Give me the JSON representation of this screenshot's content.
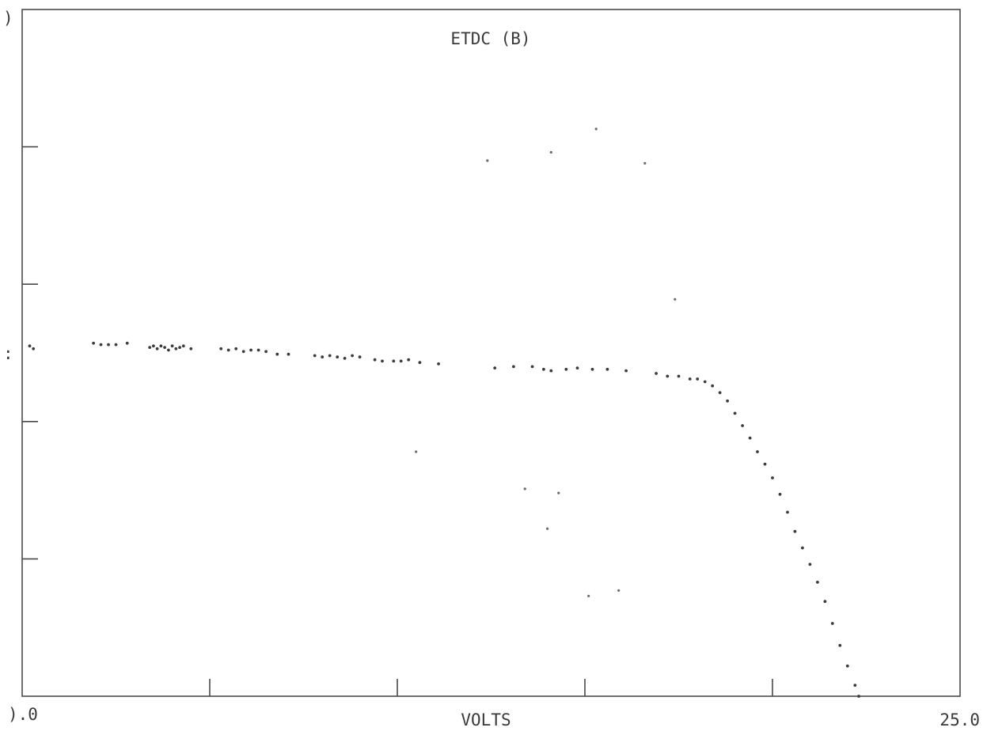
{
  "chart_data": {
    "type": "scatter",
    "title": "ETDC (B)",
    "xlabel": "VOLTS",
    "ylabel": "",
    "x_tick_labels": {
      "min": ").0",
      "max": "25.0"
    },
    "y_tick_labels": {
      "top": ")",
      "mid": ":"
    },
    "xlim": [
      0,
      25
    ],
    "ylim": [
      0,
      5
    ],
    "x_ticks": [
      0,
      5,
      10,
      15,
      20,
      25
    ],
    "y_ticks": [
      0,
      1,
      2,
      3,
      4,
      5
    ],
    "grid": false,
    "legend": "none",
    "marker_color": "#3c3c3c",
    "series": [
      {
        "points": [
          [
            0.2,
            2.55
          ],
          [
            0.3,
            2.53
          ],
          [
            1.9,
            2.57
          ],
          [
            2.1,
            2.56
          ],
          [
            2.3,
            2.56
          ],
          [
            2.5,
            2.56
          ],
          [
            2.8,
            2.57
          ],
          [
            3.4,
            2.54
          ],
          [
            3.5,
            2.55
          ],
          [
            3.6,
            2.53
          ],
          [
            3.7,
            2.55
          ],
          [
            3.8,
            2.54
          ],
          [
            3.9,
            2.52
          ],
          [
            4.0,
            2.55
          ],
          [
            4.1,
            2.53
          ],
          [
            4.2,
            2.54
          ],
          [
            4.3,
            2.55
          ],
          [
            4.5,
            2.53
          ],
          [
            5.3,
            2.53
          ],
          [
            5.5,
            2.52
          ],
          [
            5.7,
            2.53
          ],
          [
            5.9,
            2.51
          ],
          [
            6.1,
            2.52
          ],
          [
            6.3,
            2.52
          ],
          [
            6.5,
            2.51
          ],
          [
            6.8,
            2.49
          ],
          [
            7.1,
            2.49
          ],
          [
            7.8,
            2.48
          ],
          [
            8.0,
            2.47
          ],
          [
            8.2,
            2.48
          ],
          [
            8.4,
            2.47
          ],
          [
            8.6,
            2.46
          ],
          [
            8.8,
            2.48
          ],
          [
            9.0,
            2.47
          ],
          [
            9.4,
            2.45
          ],
          [
            9.6,
            2.44
          ],
          [
            9.9,
            2.44
          ],
          [
            10.1,
            2.44
          ],
          [
            10.3,
            2.45
          ],
          [
            10.6,
            2.43
          ],
          [
            11.1,
            2.42
          ],
          [
            12.6,
            2.39
          ],
          [
            13.1,
            2.4
          ],
          [
            13.6,
            2.4
          ],
          [
            13.9,
            2.38
          ],
          [
            14.1,
            2.37
          ],
          [
            14.5,
            2.38
          ],
          [
            14.8,
            2.39
          ],
          [
            15.2,
            2.38
          ],
          [
            15.6,
            2.38
          ],
          [
            16.1,
            2.37
          ],
          [
            16.9,
            2.35
          ],
          [
            17.2,
            2.33
          ],
          [
            17.5,
            2.33
          ],
          [
            17.8,
            2.31
          ],
          [
            18.0,
            2.31
          ],
          [
            18.2,
            2.29
          ],
          [
            18.4,
            2.26
          ],
          [
            18.6,
            2.21
          ],
          [
            18.8,
            2.15
          ],
          [
            19.0,
            2.06
          ],
          [
            19.2,
            1.97
          ],
          [
            19.4,
            1.88
          ],
          [
            19.6,
            1.78
          ],
          [
            19.8,
            1.69
          ],
          [
            20.0,
            1.59
          ],
          [
            20.2,
            1.47
          ],
          [
            20.4,
            1.34
          ],
          [
            20.6,
            1.2
          ],
          [
            20.8,
            1.08
          ],
          [
            21.0,
            0.96
          ],
          [
            21.2,
            0.83
          ],
          [
            21.4,
            0.69
          ],
          [
            21.6,
            0.53
          ],
          [
            21.8,
            0.37
          ],
          [
            22.0,
            0.22
          ],
          [
            22.2,
            0.08
          ],
          [
            22.3,
            0.0
          ]
        ]
      }
    ],
    "stray_points": [
      [
        12.4,
        3.9
      ],
      [
        14.1,
        3.96
      ],
      [
        15.3,
        4.13
      ],
      [
        16.6,
        3.88
      ],
      [
        17.4,
        2.89
      ],
      [
        10.5,
        1.78
      ],
      [
        13.4,
        1.51
      ],
      [
        14.0,
        1.22
      ],
      [
        15.1,
        0.73
      ],
      [
        15.9,
        0.77
      ],
      [
        14.3,
        1.48
      ]
    ]
  }
}
